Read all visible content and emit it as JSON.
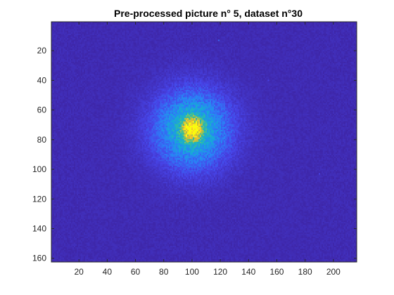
{
  "chart_data": {
    "type": "heatmap",
    "title": "Pre-processed picture n° 5, dataset n°30",
    "xlabel": "",
    "ylabel": "",
    "xlim": [
      0.5,
      216.5
    ],
    "ylim": [
      0.5,
      162.5
    ],
    "y_reversed": true,
    "x_ticks": [
      20,
      40,
      60,
      80,
      100,
      120,
      140,
      160,
      180,
      200
    ],
    "x_tick_labels": [
      "20",
      "40",
      "60",
      "80",
      "100",
      "120",
      "140",
      "160",
      "180",
      "200"
    ],
    "y_ticks": [
      20,
      40,
      60,
      80,
      100,
      120,
      140,
      160
    ],
    "y_tick_labels": [
      "20",
      "40",
      "60",
      "80",
      "100",
      "120",
      "140",
      "160"
    ],
    "image_size": {
      "rows": 162,
      "cols": 216
    },
    "colormap": "parula",
    "colormap_stops": [
      "#3e26a8",
      "#4744e8",
      "#2b80f7",
      "#16a9d8",
      "#2ebba6",
      "#81c363",
      "#d9bb33",
      "#fdcf2c",
      "#f9fb0e"
    ],
    "background_level": 0.02,
    "blob": {
      "center_col": 100,
      "center_row": 73,
      "halo_radius_cols": 31,
      "halo_radius_rows": 30,
      "halo_peak": 0.42,
      "core_radius_cols": 7,
      "core_radius_rows": 8,
      "core_peak": 0.95
    },
    "hot_pixels": [
      {
        "col": 119,
        "row": 13,
        "level": 0.2
      },
      {
        "col": 154,
        "row": 40,
        "level": 0.12
      },
      {
        "col": 190,
        "row": 103,
        "level": 0.12
      }
    ],
    "grid": false,
    "legend": "none"
  },
  "colors": {
    "axes_color": "#262626",
    "background": "#ffffff"
  }
}
